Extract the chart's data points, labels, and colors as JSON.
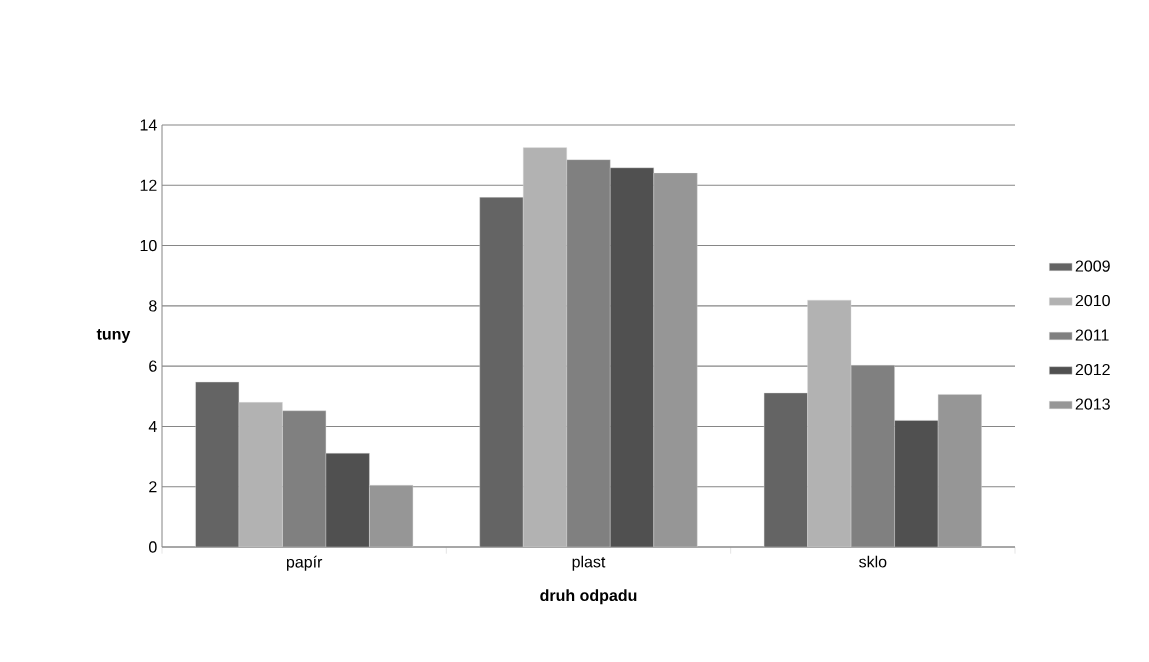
{
  "chart_data": {
    "type": "bar",
    "xlabel": "druh odpadu",
    "ylabel": "tuny",
    "categories": [
      "papír",
      "plast",
      "sklo"
    ],
    "series": [
      {
        "name": "2009",
        "color": "#646464",
        "values": [
          5.47,
          11.6,
          5.11
        ]
      },
      {
        "name": "2010",
        "color": "#b2b2b2",
        "values": [
          4.8,
          13.25,
          8.19
        ]
      },
      {
        "name": "2011",
        "color": "#808080",
        "values": [
          4.52,
          12.85,
          6.03
        ]
      },
      {
        "name": "2012",
        "color": "#505050",
        "values": [
          3.11,
          12.58,
          4.2
        ]
      },
      {
        "name": "2013",
        "color": "#969696",
        "values": [
          2.05,
          12.41,
          5.06
        ]
      }
    ],
    "ylim": [
      0,
      14
    ],
    "yticks": [
      0,
      2,
      4,
      6,
      8,
      10,
      12,
      14
    ],
    "grid": "y",
    "legend": "right"
  }
}
